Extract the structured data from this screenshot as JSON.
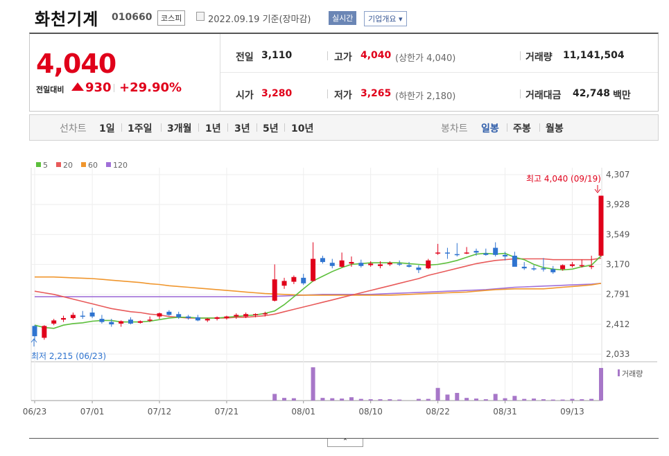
{
  "header": {
    "title": "화천기계",
    "code": "010660",
    "market": "코스피",
    "date": "2022.09.19 기준(장마감)",
    "realtime": "실시간",
    "company_info": "기업개요"
  },
  "quote": {
    "price": "4,040",
    "compare_label": "전일대비",
    "change": "930",
    "change_rate": "+29.90%",
    "prev_close_label": "전일",
    "prev_close": "3,110",
    "open_label": "시가",
    "open": "3,280",
    "high_label": "고가",
    "high": "4,040",
    "upper_limit": "(상한가 4,040)",
    "low_label": "저가",
    "low": "3,265",
    "lower_limit": "(하한가 2,180)",
    "volume_label": "거래량",
    "volume": "11,141,504",
    "amount_label": "거래대금",
    "amount": "42,748",
    "amount_unit": "백만"
  },
  "toolbar": {
    "line_label": "선차트",
    "line_periods": [
      "1일",
      "1주일",
      "3개월",
      "1년",
      "3년",
      "5년",
      "10년"
    ],
    "candle_label": "봉차트",
    "candle_periods": [
      "일봉",
      "주봉",
      "월봉"
    ],
    "selected_candle": "일봉"
  },
  "colors": {
    "up": "#e0001a",
    "down": "#2f74d0",
    "ma5": "#5cbf3b",
    "ma20": "#e85a5a",
    "ma60": "#f0962d",
    "ma120": "#a06fd8"
  },
  "chart_data": {
    "type": "candlestick",
    "legend": [
      {
        "name": "5",
        "color": "#5cbf3b"
      },
      {
        "name": "20",
        "color": "#e85a5a"
      },
      {
        "name": "60",
        "color": "#f0962d"
      },
      {
        "name": "120",
        "color": "#a06fd8"
      }
    ],
    "y_ticks": [
      "4,307",
      "3,928",
      "3,549",
      "3,170",
      "2,791",
      "2,412",
      "2,033"
    ],
    "ylim": [
      2033,
      4307
    ],
    "x_ticks": [
      {
        "label": "06/23",
        "index": 0
      },
      {
        "label": "07/01",
        "index": 6
      },
      {
        "label": "07/12",
        "index": 13
      },
      {
        "label": "07/21",
        "index": 20
      },
      {
        "label": "08/01",
        "index": 28
      },
      {
        "label": "08/10",
        "index": 35
      },
      {
        "label": "08/22",
        "index": 42
      },
      {
        "label": "08/31",
        "index": 49
      },
      {
        "label": "09/13",
        "index": 56
      }
    ],
    "max_note": "최고 4,040 (09/19)",
    "min_note": "최저 2,215 (06/23)",
    "volume_label": "거래량",
    "candles": [
      [
        2390,
        2400,
        2215,
        2260
      ],
      [
        2240,
        2400,
        2215,
        2390
      ],
      [
        2420,
        2480,
        2400,
        2460
      ],
      [
        2470,
        2520,
        2440,
        2490
      ],
      [
        2490,
        2560,
        2470,
        2530
      ],
      [
        2520,
        2580,
        2480,
        2510
      ],
      [
        2560,
        2620,
        2490,
        2510
      ],
      [
        2480,
        2530,
        2420,
        2440
      ],
      [
        2440,
        2480,
        2380,
        2410
      ],
      [
        2420,
        2460,
        2380,
        2450
      ],
      [
        2470,
        2500,
        2410,
        2420
      ],
      [
        2430,
        2460,
        2420,
        2450
      ],
      [
        2460,
        2510,
        2440,
        2470
      ],
      [
        2510,
        2560,
        2480,
        2550
      ],
      [
        2570,
        2590,
        2520,
        2530
      ],
      [
        2540,
        2570,
        2480,
        2500
      ],
      [
        2510,
        2530,
        2470,
        2490
      ],
      [
        2500,
        2530,
        2450,
        2460
      ],
      [
        2460,
        2490,
        2440,
        2480
      ],
      [
        2480,
        2510,
        2460,
        2500
      ],
      [
        2490,
        2520,
        2470,
        2510
      ],
      [
        2510,
        2550,
        2480,
        2530
      ],
      [
        2510,
        2560,
        2490,
        2540
      ],
      [
        2530,
        2550,
        2500,
        2540
      ],
      [
        2540,
        2570,
        2510,
        2550
      ],
      [
        2710,
        3170,
        2700,
        2980
      ],
      [
        2900,
        3000,
        2860,
        2960
      ],
      [
        2950,
        3030,
        2920,
        3010
      ],
      [
        3000,
        3050,
        2910,
        2930
      ],
      [
        2960,
        3450,
        2950,
        3240
      ],
      [
        3250,
        3280,
        3180,
        3200
      ],
      [
        3190,
        3240,
        3120,
        3150
      ],
      [
        3140,
        3320,
        3130,
        3220
      ],
      [
        3180,
        3270,
        3140,
        3200
      ],
      [
        3190,
        3230,
        3130,
        3150
      ],
      [
        3160,
        3210,
        3140,
        3180
      ],
      [
        3150,
        3210,
        3120,
        3170
      ],
      [
        3170,
        3210,
        3150,
        3190
      ],
      [
        3180,
        3220,
        3150,
        3170
      ],
      [
        3160,
        3200,
        3130,
        3140
      ],
      [
        3130,
        3160,
        3060,
        3100
      ],
      [
        3120,
        3240,
        3110,
        3220
      ],
      [
        3320,
        3430,
        3290,
        3320
      ],
      [
        3320,
        3380,
        3240,
        3310
      ],
      [
        3300,
        3440,
        3270,
        3290
      ],
      [
        3320,
        3390,
        3300,
        3320
      ],
      [
        3340,
        3370,
        3280,
        3320
      ],
      [
        3310,
        3370,
        3280,
        3290
      ],
      [
        3380,
        3450,
        3270,
        3290
      ],
      [
        3290,
        3330,
        3220,
        3270
      ],
      [
        3280,
        3330,
        3160,
        3140
      ],
      [
        3140,
        3200,
        3100,
        3120
      ],
      [
        3120,
        3160,
        3090,
        3110
      ],
      [
        3120,
        3250,
        3080,
        3110
      ],
      [
        3110,
        3150,
        3050,
        3070
      ],
      [
        3110,
        3170,
        3090,
        3160
      ],
      [
        3150,
        3200,
        3130,
        3170
      ],
      [
        3160,
        3230,
        3130,
        3160
      ],
      [
        3140,
        3280,
        3110,
        3150
      ],
      [
        3280,
        4040,
        3265,
        4040
      ]
    ],
    "ma5": [
      2400,
      2370,
      2360,
      2400,
      2420,
      2430,
      2450,
      2460,
      2460,
      2440,
      2440,
      2440,
      2450,
      2470,
      2490,
      2500,
      2500,
      2490,
      2490,
      2490,
      2500,
      2510,
      2520,
      2530,
      2550,
      2580,
      2660,
      2760,
      2860,
      2960,
      3020,
      3080,
      3130,
      3170,
      3180,
      3190,
      3190,
      3190,
      3190,
      3180,
      3170,
      3160,
      3170,
      3190,
      3220,
      3260,
      3300,
      3310,
      3300,
      3310,
      3260,
      3230,
      3170,
      3130,
      3110,
      3100,
      3110,
      3140,
      3160,
      3280
    ],
    "ma20": [
      2830,
      2810,
      2790,
      2760,
      2730,
      2700,
      2670,
      2640,
      2610,
      2590,
      2570,
      2560,
      2540,
      2530,
      2510,
      2500,
      2490,
      2490,
      2490,
      2490,
      2490,
      2500,
      2500,
      2510,
      2520,
      2540,
      2570,
      2600,
      2630,
      2660,
      2690,
      2720,
      2750,
      2780,
      2810,
      2840,
      2870,
      2900,
      2930,
      2960,
      2990,
      3030,
      3060,
      3090,
      3120,
      3150,
      3180,
      3200,
      3220,
      3230,
      3240,
      3240,
      3240,
      3240,
      3230,
      3230,
      3230,
      3230,
      3230,
      3250
    ],
    "ma60": [
      3010,
      3010,
      3010,
      3005,
      3000,
      2995,
      2990,
      2980,
      2970,
      2960,
      2950,
      2940,
      2925,
      2915,
      2900,
      2890,
      2880,
      2870,
      2860,
      2850,
      2840,
      2830,
      2820,
      2810,
      2800,
      2795,
      2790,
      2785,
      2780,
      2780,
      2780,
      2780,
      2780,
      2780,
      2780,
      2780,
      2780,
      2780,
      2785,
      2790,
      2795,
      2800,
      2805,
      2810,
      2815,
      2820,
      2830,
      2840,
      2850,
      2855,
      2860,
      2860,
      2860,
      2860,
      2870,
      2880,
      2890,
      2900,
      2910,
      2930
    ],
    "ma120": [
      2760,
      2760,
      2760,
      2760,
      2760,
      2760,
      2760,
      2760,
      2760,
      2760,
      2760,
      2760,
      2760,
      2760,
      2760,
      2760,
      2760,
      2760,
      2760,
      2760,
      2760,
      2760,
      2760,
      2760,
      2760,
      2765,
      2770,
      2775,
      2780,
      2785,
      2790,
      2790,
      2790,
      2790,
      2790,
      2790,
      2795,
      2800,
      2805,
      2810,
      2815,
      2820,
      2825,
      2830,
      2835,
      2840,
      2845,
      2850,
      2860,
      2870,
      2880,
      2885,
      2890,
      2895,
      2900,
      2905,
      2910,
      2915,
      2920,
      2930
    ],
    "volume": [
      0,
      0,
      0,
      0,
      0,
      0,
      0,
      0,
      0,
      0,
      0,
      0,
      0,
      0,
      0,
      0,
      0,
      0,
      0,
      0,
      0,
      0,
      0,
      0,
      0,
      0.2,
      0.08,
      0.07,
      0,
      1.0,
      0.08,
      0.07,
      0.06,
      0.1,
      0.05,
      0.04,
      0.04,
      0.04,
      0.03,
      0,
      0.05,
      0.05,
      0.38,
      0.18,
      0.23,
      0.08,
      0.06,
      0.04,
      0.2,
      0.07,
      0.14,
      0.05,
      0.06,
      0.04,
      0.03,
      0.03,
      0.05,
      0.04,
      0.05,
      0.98
    ]
  }
}
